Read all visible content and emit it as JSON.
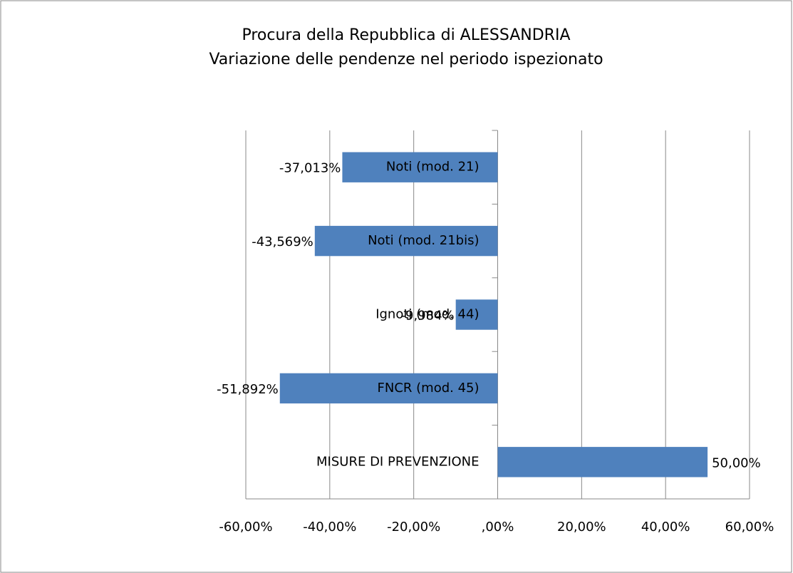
{
  "chart_data": {
    "type": "barh",
    "title": [
      "Procura della Repubblica di ALESSANDRIA",
      "Variazione delle pendenze nel periodo ispezionato"
    ],
    "categories": [
      "Noti (mod. 21)",
      "Noti (mod. 21bis)",
      "Ignoti (mod. 44)",
      "FNCR (mod. 45)",
      "MISURE DI PREVENZIONE"
    ],
    "values": [
      -37.013,
      -43.569,
      -9.984,
      -51.892,
      50
    ],
    "value_labels": [
      "-37,013%",
      "-43,569%",
      "-9,984%",
      "-51,892%",
      "50,00%"
    ],
    "color": "#4f81bd",
    "xlim": [
      -60,
      60
    ],
    "xticks": [
      {
        "value": -60,
        "label": "-60,00%"
      },
      {
        "value": -40,
        "label": "-40,00%"
      },
      {
        "value": -20,
        "label": "-20,00%"
      },
      {
        "value": 0,
        "label": ",00%"
      },
      {
        "value": 20,
        "label": "20,00%"
      },
      {
        "value": 40,
        "label": "40,00%"
      },
      {
        "value": 60,
        "label": "60,00%"
      }
    ],
    "grid": true
  }
}
